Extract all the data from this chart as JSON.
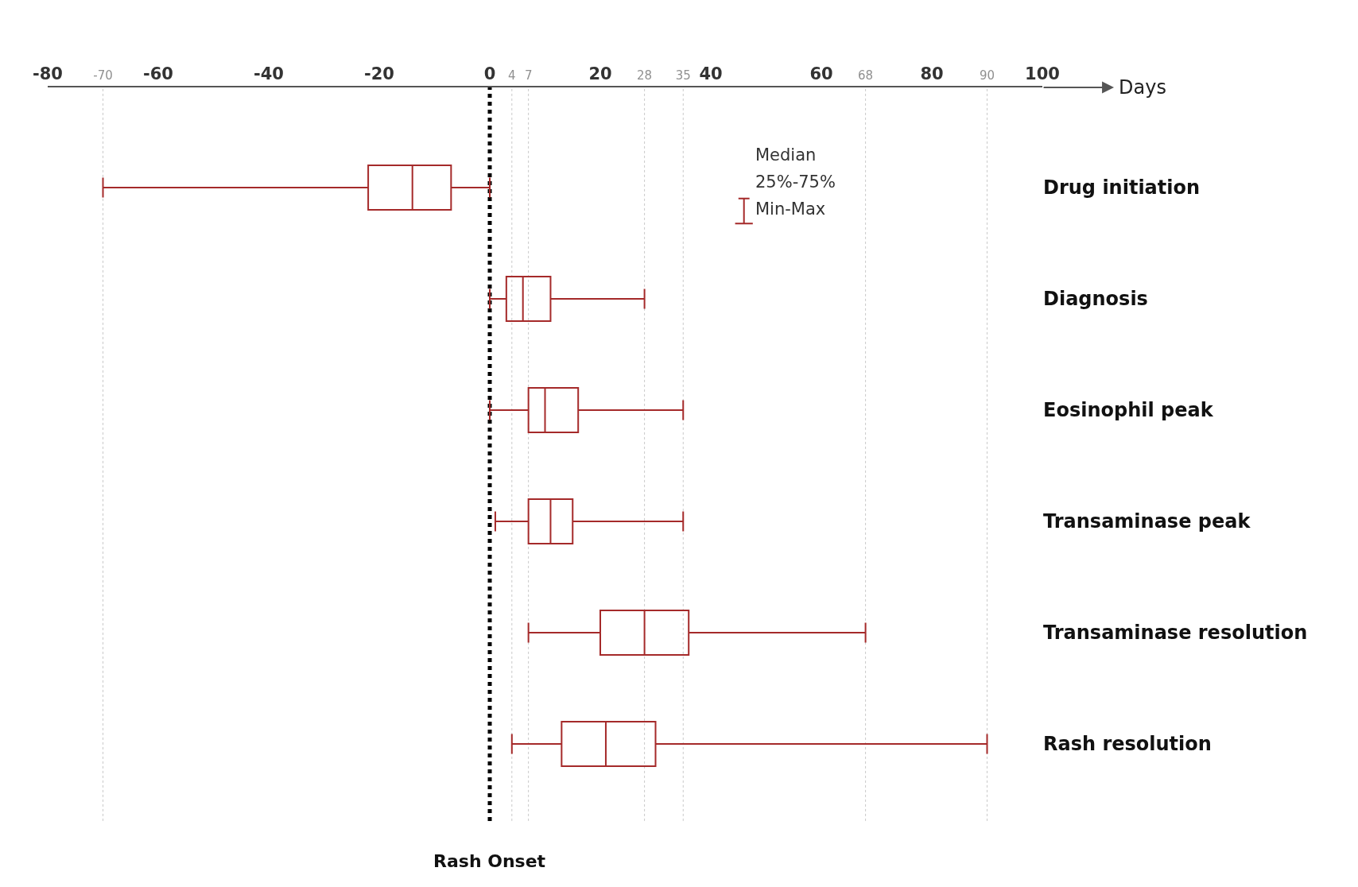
{
  "chart_data": {
    "type": "box",
    "orientation": "horizontal",
    "xlabel": "Days",
    "categories": [
      "Drug initiation",
      "Diagnosis",
      "Eosinophil peak",
      "Transaminase peak",
      "Transaminase resolution",
      "Rash resolution"
    ],
    "series": [
      {
        "color": "#a52a2a",
        "boxes": [
          {
            "low": -70,
            "q1": -22,
            "median": -14,
            "q3": -7,
            "high": 0
          },
          {
            "low": 0,
            "q1": 3,
            "median": 6,
            "q3": 11,
            "high": 28
          },
          {
            "low": 0,
            "q1": 7,
            "median": 10,
            "q3": 16,
            "high": 35
          },
          {
            "low": 1,
            "q1": 7,
            "median": 11,
            "q3": 15,
            "high": 35
          },
          {
            "low": 7,
            "q1": 20,
            "median": 28,
            "q3": 36,
            "high": 68
          },
          {
            "low": 4,
            "q1": 13,
            "median": 21,
            "q3": 30,
            "high": 90
          }
        ]
      }
    ],
    "xlim": [
      -80,
      100
    ],
    "xticks": [
      -80,
      -70,
      -60,
      -40,
      -20,
      0,
      4,
      7,
      20,
      28,
      35,
      40,
      60,
      68,
      80,
      90,
      100
    ],
    "ref_lines": [
      {
        "axis": "x",
        "value": 0,
        "label": "Rash Onset",
        "color": "#000000",
        "line_style": "dotted"
      },
      {
        "axis": "x",
        "value": -70,
        "label": null,
        "color": "#c8c8c8",
        "line_style": "dotted"
      },
      {
        "axis": "x",
        "value": 4,
        "label": null,
        "color": "#c8c8c8",
        "line_style": "dotted"
      },
      {
        "axis": "x",
        "value": 7,
        "label": null,
        "color": "#c8c8c8",
        "line_style": "dotted"
      },
      {
        "axis": "x",
        "value": 28,
        "label": null,
        "color": "#c8c8c8",
        "line_style": "dotted"
      },
      {
        "axis": "x",
        "value": 35,
        "label": null,
        "color": "#c8c8c8",
        "line_style": "dotted"
      },
      {
        "axis": "x",
        "value": 68,
        "label": null,
        "color": "#c8c8c8",
        "line_style": "dotted"
      },
      {
        "axis": "x",
        "value": 90,
        "label": null,
        "color": "#c8c8c8",
        "line_style": "dotted"
      }
    ],
    "annotations": [
      "Median",
      "25%-75%",
      "Min-Max"
    ]
  }
}
